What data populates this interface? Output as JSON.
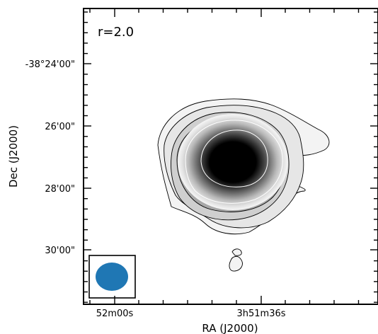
{
  "chart_data": {
    "type": "contour-image",
    "annotation": "r=2.0",
    "xlabel": "RA (J2000)",
    "ylabel": "Dec (J2000)",
    "x_ticks": [
      "52m00s",
      "3h51m36s"
    ],
    "y_ticks": [
      "-38°24'00\"",
      "26'00\"",
      "28'00\"",
      "30'00\""
    ],
    "beam": {
      "shape": "ellipse",
      "color": "#1f77b4"
    },
    "colormap": "gray_r",
    "grid": false,
    "legend": "none"
  }
}
